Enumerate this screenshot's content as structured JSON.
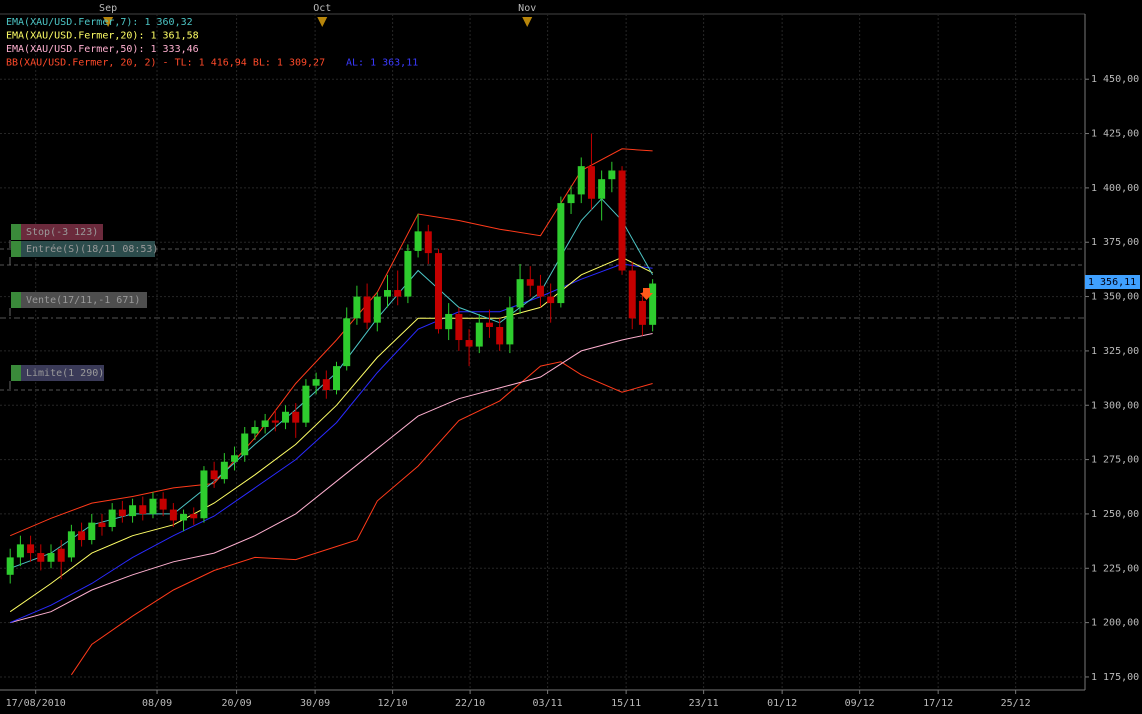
{
  "chart_data": {
    "type": "candlestick",
    "indicators": [
      {
        "text": "EMA(XAU/USD.Fermer,7): 1 360,32",
        "color": "#4cc4c4"
      },
      {
        "text": "EMA(XAU/USD.Fermer,20): 1 361,58",
        "color": "#ffff66"
      },
      {
        "text": "EMA(XAU/USD.Fermer,50): 1 333,46",
        "color": "#ffb0d0"
      },
      {
        "text": "BB(XAU/USD.Fermer, 20, 2) -  TL: 1 416,94  BL: 1 309,27",
        "color": "#ff4a2a"
      },
      {
        "text": "AL: 1 363,11",
        "color": "#3a3aff"
      }
    ],
    "orders": [
      {
        "text": "Stop(-3 123)",
        "color": "#6b2a3c"
      },
      {
        "text": "Entrée(S)(18/11 08:53)",
        "color": "#2c4c4c"
      },
      {
        "text": "Vente(17/11,-1 671)",
        "color": "#4e4e4e"
      },
      {
        "text": "Limite(1 290)",
        "color": "#3a3a58"
      }
    ],
    "price_tag": "1 356,11",
    "months": [
      {
        "value": 9.6,
        "label": "Sep"
      },
      {
        "value": 30.6,
        "label": "Oct"
      },
      {
        "value": 50.7,
        "label": "Nov"
      }
    ],
    "up_color": "#2ecc2e",
    "down_color": "#c40000",
    "open": [
      1222,
      1230,
      1236,
      1232,
      1228,
      1234,
      1230,
      1242,
      1238,
      1246,
      1244,
      1252,
      1249,
      1254,
      1250,
      1257,
      1252,
      1247,
      1250,
      1248,
      1270,
      1266,
      1274,
      1277,
      1287,
      1290,
      1293,
      1292,
      1297,
      1292,
      1309,
      1312,
      1307,
      1318,
      1340,
      1350,
      1338,
      1350,
      1353,
      1350,
      1371,
      1380,
      1370,
      1335,
      1342,
      1330,
      1327,
      1338,
      1336,
      1328,
      1345,
      1358,
      1355,
      1350,
      1347,
      1393,
      1397,
      1410,
      1395,
      1404,
      1408,
      1362,
      1348,
      1337
    ],
    "high": [
      1234,
      1240,
      1240,
      1236,
      1236,
      1238,
      1245,
      1246,
      1250,
      1250,
      1255,
      1256,
      1257,
      1258,
      1260,
      1260,
      1255,
      1252,
      1253,
      1272,
      1274,
      1278,
      1281,
      1290,
      1293,
      1296,
      1298,
      1300,
      1301,
      1312,
      1315,
      1316,
      1320,
      1345,
      1355,
      1356,
      1352,
      1360,
      1362,
      1374,
      1388,
      1383,
      1372,
      1347,
      1345,
      1335,
      1342,
      1344,
      1340,
      1350,
      1365,
      1364,
      1360,
      1356,
      1396,
      1401,
      1414,
      1425,
      1408,
      1412,
      1410,
      1366,
      1352,
      1358
    ],
    "low": [
      1218,
      1226,
      1228,
      1224,
      1225,
      1220,
      1228,
      1235,
      1236,
      1240,
      1242,
      1246,
      1246,
      1247,
      1248,
      1249,
      1244,
      1242,
      1245,
      1246,
      1262,
      1264,
      1270,
      1274,
      1284,
      1287,
      1288,
      1289,
      1285,
      1290,
      1305,
      1303,
      1305,
      1316,
      1337,
      1335,
      1334,
      1345,
      1346,
      1347,
      1368,
      1365,
      1333,
      1330,
      1325,
      1318,
      1324,
      1331,
      1325,
      1324,
      1342,
      1350,
      1345,
      1338,
      1345,
      1388,
      1393,
      1390,
      1385,
      1398,
      1360,
      1335,
      1332,
      1334
    ],
    "close": [
      1230,
      1236,
      1232,
      1228,
      1232,
      1228,
      1242,
      1238,
      1246,
      1244,
      1252,
      1249,
      1254,
      1250,
      1257,
      1252,
      1247,
      1250,
      1248,
      1270,
      1266,
      1274,
      1277,
      1287,
      1290,
      1293,
      1292,
      1297,
      1292,
      1309,
      1312,
      1307,
      1318,
      1340,
      1350,
      1338,
      1350,
      1353,
      1350,
      1371,
      1380,
      1370,
      1335,
      1342,
      1330,
      1327,
      1338,
      1336,
      1328,
      1345,
      1358,
      1355,
      1350,
      1347,
      1393,
      1397,
      1410,
      1395,
      1404,
      1408,
      1362,
      1340,
      1337,
      1356
    ],
    "lines": [
      {
        "color": "#ff3a1a",
        "x": [
          0,
          4,
          8,
          12,
          16,
          20,
          24,
          28,
          32,
          36,
          40,
          44,
          48,
          52,
          56,
          60,
          63
        ],
        "values": [
          1240,
          1248,
          1255,
          1258,
          1262,
          1264,
          1285,
          1310,
          1330,
          1352,
          1388,
          1385,
          1381,
          1378,
          1408,
          1418,
          1417
        ]
      },
      {
        "color": "#ff3a1a",
        "x": [
          6,
          8,
          12,
          16,
          20,
          24,
          28,
          32,
          34,
          36,
          40,
          44,
          48,
          52,
          54,
          56,
          60,
          63
        ],
        "values": [
          1176,
          1190,
          1203,
          1215,
          1224,
          1230,
          1229,
          1235,
          1238,
          1256,
          1272,
          1293,
          1302,
          1318,
          1320,
          1314,
          1306,
          1310
        ]
      },
      {
        "color": "#ffb0d0",
        "x": [
          0,
          4,
          8,
          12,
          16,
          20,
          24,
          28,
          32,
          36,
          40,
          44,
          48,
          52,
          56,
          60,
          63
        ],
        "values": [
          1200,
          1205,
          1215,
          1222,
          1228,
          1232,
          1240,
          1250,
          1265,
          1280,
          1295,
          1303,
          1308,
          1313,
          1325,
          1330,
          1333
        ]
      },
      {
        "color": "#2a2aff",
        "x": [
          0,
          4,
          8,
          12,
          16,
          20,
          24,
          28,
          32,
          36,
          40,
          44,
          48,
          52,
          56,
          60,
          63
        ],
        "values": [
          1200,
          1208,
          1218,
          1230,
          1240,
          1249,
          1262,
          1275,
          1292,
          1315,
          1335,
          1343,
          1343,
          1350,
          1358,
          1365,
          1363
        ]
      },
      {
        "color": "#ffff66",
        "x": [
          0,
          4,
          8,
          12,
          16,
          20,
          24,
          28,
          32,
          36,
          40,
          44,
          48,
          52,
          56,
          60,
          63
        ],
        "values": [
          1205,
          1218,
          1232,
          1240,
          1245,
          1255,
          1268,
          1282,
          1300,
          1322,
          1340,
          1340,
          1340,
          1345,
          1360,
          1368,
          1361
        ]
      },
      {
        "color": "#4cc4c4",
        "x": [
          0,
          4,
          8,
          12,
          16,
          20,
          24,
          28,
          32,
          36,
          40,
          44,
          48,
          52,
          56,
          58,
          60,
          63
        ],
        "values": [
          1225,
          1232,
          1245,
          1250,
          1250,
          1265,
          1282,
          1298,
          1315,
          1340,
          1362,
          1345,
          1338,
          1352,
          1385,
          1395,
          1385,
          1360
        ]
      }
    ],
    "xlim": [
      -1,
      105.4
    ],
    "ylim": [
      1169,
      1480
    ],
    "xticks": [
      {
        "value": 2.5,
        "label": "17/08/2010"
      },
      {
        "value": 14.4,
        "label": "08/09"
      },
      {
        "value": 22.2,
        "label": "20/09"
      },
      {
        "value": 29.9,
        "label": "30/09"
      },
      {
        "value": 37.5,
        "label": "12/10"
      },
      {
        "value": 45.1,
        "label": "22/10"
      },
      {
        "value": 52.7,
        "label": "03/11"
      },
      {
        "value": 60.4,
        "label": "15/11"
      },
      {
        "value": 68.0,
        "label": "23/11"
      },
      {
        "value": 75.7,
        "label": "01/12"
      },
      {
        "value": 83.3,
        "label": "09/12"
      },
      {
        "value": 91.0,
        "label": "17/12"
      },
      {
        "value": 98.6,
        "label": "25/12"
      }
    ],
    "yticks": [
      {
        "value": 1175,
        "label": "1 175,00"
      },
      {
        "value": 1200,
        "label": "1 200,00"
      },
      {
        "value": 1225,
        "label": "1 225,00"
      },
      {
        "value": 1250,
        "label": "1 250,00"
      },
      {
        "value": 1275,
        "label": "1 275,00"
      },
      {
        "value": 1300,
        "label": "1 300,00"
      },
      {
        "value": 1325,
        "label": "1 325,00"
      },
      {
        "value": 1350,
        "label": "1 350,00"
      },
      {
        "value": 1375,
        "label": "1 375,00"
      },
      {
        "value": 1400,
        "label": "1 400,00"
      },
      {
        "value": 1425,
        "label": "1 425,00"
      },
      {
        "value": 1450,
        "label": "1 450,00"
      }
    ],
    "grid": true
  }
}
